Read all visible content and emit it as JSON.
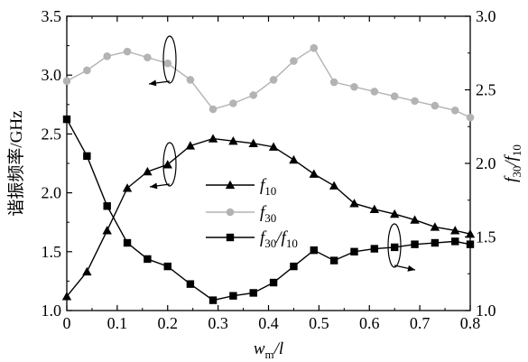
{
  "chart_data": {
    "type": "line",
    "xlabel": "w_m/l",
    "ylabel_left": "谐振频率/GHz",
    "ylabel_right": "f30/f10",
    "xlim": [
      0,
      0.8
    ],
    "ylim_left": [
      1.0,
      3.5
    ],
    "ylim_right": [
      1.0,
      3.0
    ],
    "x_ticks": [
      "0",
      "0.1",
      "0.2",
      "0.3",
      "0.4",
      "0.5",
      "0.6",
      "0.7",
      "0.8"
    ],
    "y_left_ticks": [
      "1.0",
      "1.5",
      "2.0",
      "2.5",
      "3.0",
      "3.5"
    ],
    "y_right_ticks": [
      "1.0",
      "1.5",
      "2.0",
      "2.5",
      "3.0"
    ],
    "x": [
      0,
      0.04,
      0.08,
      0.12,
      0.16,
      0.2,
      0.245,
      0.29,
      0.33,
      0.37,
      0.41,
      0.45,
      0.49,
      0.53,
      0.57,
      0.61,
      0.65,
      0.69,
      0.73,
      0.77,
      0.8
    ],
    "series": [
      {
        "name": "f10",
        "axis": "left",
        "marker": "triangle",
        "color": "#000000",
        "values": [
          1.12,
          1.33,
          1.68,
          2.04,
          2.18,
          2.24,
          2.4,
          2.46,
          2.44,
          2.42,
          2.39,
          2.28,
          2.16,
          2.06,
          1.91,
          1.86,
          1.82,
          1.77,
          1.71,
          1.68,
          1.65
        ]
      },
      {
        "name": "f30",
        "axis": "left",
        "marker": "circle",
        "color": "#b3b3b3",
        "values": [
          2.95,
          3.04,
          3.16,
          3.2,
          3.15,
          3.1,
          2.96,
          2.71,
          2.76,
          2.83,
          2.96,
          3.12,
          3.23,
          2.94,
          2.9,
          2.86,
          2.82,
          2.78,
          2.74,
          2.7,
          2.64
        ]
      },
      {
        "name": "f30/f10",
        "axis": "right",
        "marker": "square",
        "color": "#000000",
        "values": [
          2.3,
          2.05,
          1.71,
          1.46,
          1.35,
          1.3,
          1.18,
          1.07,
          1.1,
          1.12,
          1.19,
          1.3,
          1.41,
          1.34,
          1.4,
          1.42,
          1.43,
          1.45,
          1.46,
          1.47,
          1.45
        ]
      }
    ],
    "legend": {
      "placement": "center",
      "entries": [
        {
          "base": "f",
          "sub": "10"
        },
        {
          "base": "f",
          "sub": "30"
        },
        {
          "base": "f",
          "sub": "30",
          "sep": "/",
          "base2": "f",
          "sub2": "10"
        }
      ]
    },
    "annotations": [
      "ellipse-arrow f30 → left axis",
      "ellipse-arrow f10 → left axis",
      "ellipse-arrow f30/f10 → right axis"
    ],
    "grid": false
  }
}
